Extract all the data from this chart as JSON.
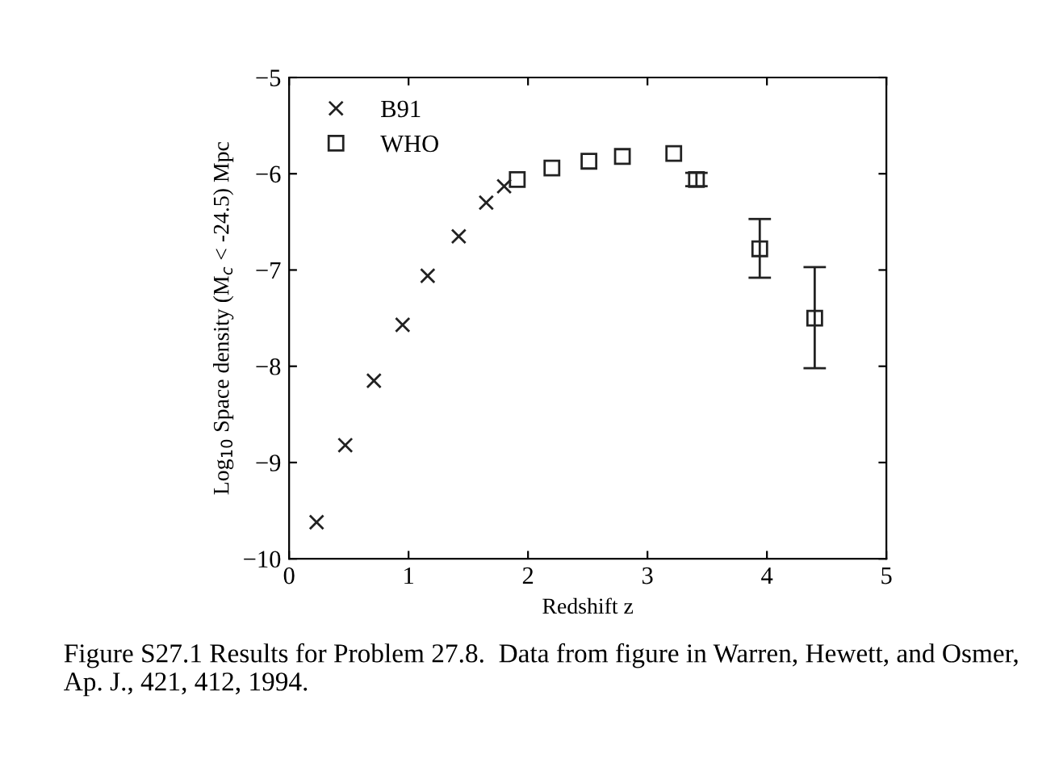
{
  "chart_data": {
    "type": "scatter",
    "xlabel": "Redshift z",
    "ylabel": "Log$_{10}$ Space density (M$_{c}$ < -24.5) Mpc",
    "xlim": [
      0,
      5
    ],
    "ylim": [
      -10,
      -5
    ],
    "xticks": [
      0,
      1,
      2,
      3,
      4,
      5
    ],
    "yticks": [
      {
        "value": -10,
        "label": "−10"
      },
      {
        "value": -9,
        "label": "−9"
      },
      {
        "value": -8,
        "label": "−8"
      },
      {
        "value": -7,
        "label": "−7"
      },
      {
        "value": -6,
        "label": "−6"
      },
      {
        "value": -5,
        "label": "−5"
      }
    ],
    "grid": false,
    "legend": "top left",
    "series": [
      {
        "name": "B91",
        "color": "#222222",
        "marker": "cross",
        "x": [
          0.23,
          0.47,
          0.71,
          0.95,
          1.16,
          1.42,
          1.65,
          1.8
        ],
        "values": [
          -9.62,
          -8.82,
          -8.15,
          -7.57,
          -7.06,
          -6.65,
          -6.3,
          -6.13
        ]
      },
      {
        "name": "WHO",
        "color": "#222222",
        "marker": "square",
        "x": [
          1.91,
          2.2,
          2.51,
          2.79,
          3.22,
          3.41,
          3.94,
          4.4
        ],
        "values": [
          -6.06,
          -5.94,
          -5.87,
          -5.82,
          -5.79,
          -6.06,
          -6.78,
          -7.5
        ],
        "errors": [
          null,
          null,
          null,
          null,
          null,
          0.07,
          [
            -7.08,
            -6.47
          ],
          [
            -8.02,
            -6.97
          ]
        ]
      }
    ],
    "annotations": [
      "Figure S27.1 Results for Problem 27.8.  Data from figure in Warren, Hewett, and Osmer, Ap. J., 421, 412, 1994."
    ]
  }
}
